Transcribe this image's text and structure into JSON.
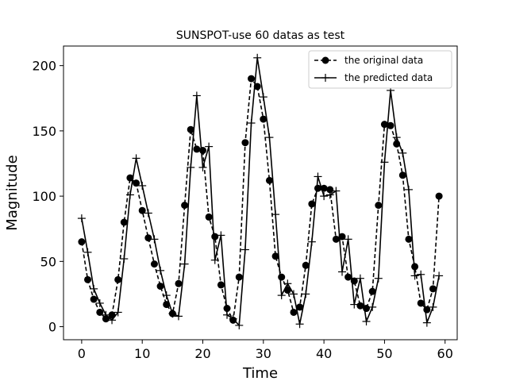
{
  "chart_data": {
    "type": "line",
    "title": "SUNSPOT-use 60 datas as test",
    "xlabel": "Time",
    "ylabel": "Magnitude",
    "xlim": [
      -3,
      62
    ],
    "ylim": [
      -10,
      215
    ],
    "xticks": [
      0,
      10,
      20,
      30,
      40,
      50,
      60
    ],
    "yticks": [
      0,
      50,
      100,
      150,
      200
    ],
    "grid": false,
    "legend_position": "top-right",
    "x": [
      0,
      1,
      2,
      3,
      4,
      5,
      6,
      7,
      8,
      9,
      10,
      11,
      12,
      13,
      14,
      15,
      16,
      17,
      18,
      19,
      20,
      21,
      22,
      23,
      24,
      25,
      26,
      27,
      28,
      29,
      30,
      31,
      32,
      33,
      34,
      35,
      36,
      37,
      38,
      39,
      40,
      41,
      42,
      43,
      44,
      45,
      46,
      47,
      48,
      49,
      50,
      51,
      52,
      53,
      54,
      55,
      56,
      57,
      58,
      59
    ],
    "series": [
      {
        "name": "the original data",
        "style": "dashed",
        "marker": "circle",
        "color": "#000000",
        "values": [
          65,
          36,
          21,
          11,
          6,
          9,
          36,
          80,
          114,
          110,
          89,
          68,
          48,
          31,
          17,
          10,
          33,
          93,
          151,
          136,
          135,
          84,
          69,
          32,
          14,
          5,
          38,
          141,
          190,
          184,
          159,
          112,
          54,
          38,
          28,
          11,
          15,
          47,
          94,
          106,
          106,
          105,
          67,
          69,
          38,
          35,
          16,
          14,
          27,
          93,
          155,
          154,
          140,
          116,
          67,
          46,
          18,
          13,
          29,
          100
        ]
      },
      {
        "name": "the predicted data",
        "style": "solid",
        "marker": "plus",
        "color": "#000000",
        "values": [
          83,
          57,
          29,
          18,
          9,
          5,
          11,
          52,
          101,
          129,
          108,
          87,
          67,
          43,
          24,
          10,
          8,
          48,
          122,
          177,
          122,
          138,
          51,
          70,
          9,
          6,
          1,
          59,
          156,
          206,
          176,
          145,
          86,
          24,
          33,
          25,
          2,
          25,
          65,
          115,
          100,
          101,
          104,
          42,
          67,
          17,
          37,
          4,
          15,
          37,
          126,
          181,
          145,
          133,
          105,
          39,
          40,
          3,
          15,
          39
        ]
      }
    ]
  }
}
